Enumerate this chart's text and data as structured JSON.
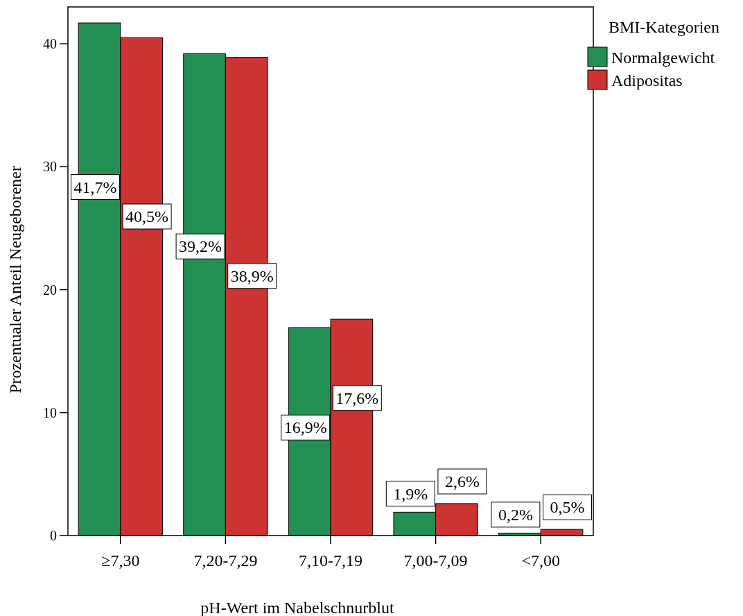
{
  "chart_data": {
    "type": "bar",
    "xlabel": "pH-Wert im Nabelschnurblut",
    "ylabel": "Prozentualer Anteil Neugeborener",
    "legend_title": "BMI-Kategorien",
    "legend": "top right",
    "grid": false,
    "categories": [
      "≥7,30",
      "7,20-7,29",
      "7,10-7,19",
      "7,00-7,09",
      "<7,00"
    ],
    "ylim": [
      0,
      43
    ],
    "yticks": [
      0,
      10,
      20,
      30,
      40
    ],
    "series": [
      {
        "name": "Normalgewicht",
        "color": "#248f52",
        "values": [
          41.7,
          39.2,
          16.9,
          1.9,
          0.2
        ],
        "value_labels": [
          "41,7%",
          "39,2%",
          "16,9%",
          "1,9%",
          "0,2%"
        ]
      },
      {
        "name": "Adipositas",
        "color": "#cc3333",
        "values": [
          40.5,
          38.9,
          17.6,
          2.6,
          0.5
        ],
        "value_labels": [
          "40,5%",
          "38,9%",
          "17,6%",
          "2,6%",
          "0,5%"
        ]
      }
    ]
  }
}
